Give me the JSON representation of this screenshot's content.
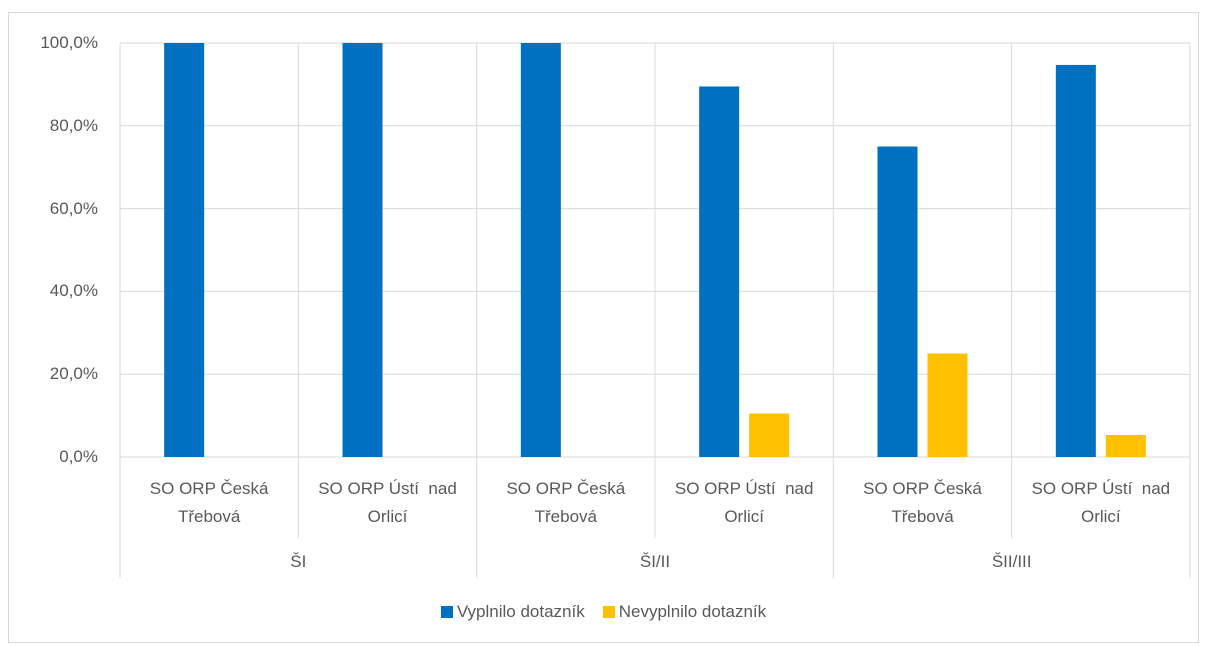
{
  "chart_data": {
    "type": "bar",
    "categories": [
      "SO ORP Česká Třebová",
      "SO ORP Ústí  nad Orlicí",
      "SO ORP Česká Třebová",
      "SO ORP Ústí  nad Orlicí",
      "SO ORP Česká Třebová",
      "SO ORP Ústí  nad Orlicí"
    ],
    "groups": [
      "ŠI",
      "ŠI/II",
      "ŠII/III"
    ],
    "series": [
      {
        "name": "Vyplnilo dotazník",
        "color": "#0070c0",
        "values": [
          100,
          100,
          100,
          89.5,
          75,
          94.7
        ]
      },
      {
        "name": "Nevyplnilo dotazník",
        "color": "#ffc000",
        "values": [
          0,
          0,
          0,
          10.5,
          25,
          5.3
        ]
      }
    ],
    "ylim": [
      0,
      100
    ],
    "yticks": [
      {
        "value": 0,
        "label": "0,0%"
      },
      {
        "value": 20,
        "label": "20,0%"
      },
      {
        "value": 40,
        "label": "40,0%"
      },
      {
        "value": 60,
        "label": "60,0%"
      },
      {
        "value": 80,
        "label": "80,0%"
      },
      {
        "value": 100,
        "label": "100,0%"
      }
    ],
    "grid": true,
    "legend": "bottom"
  }
}
